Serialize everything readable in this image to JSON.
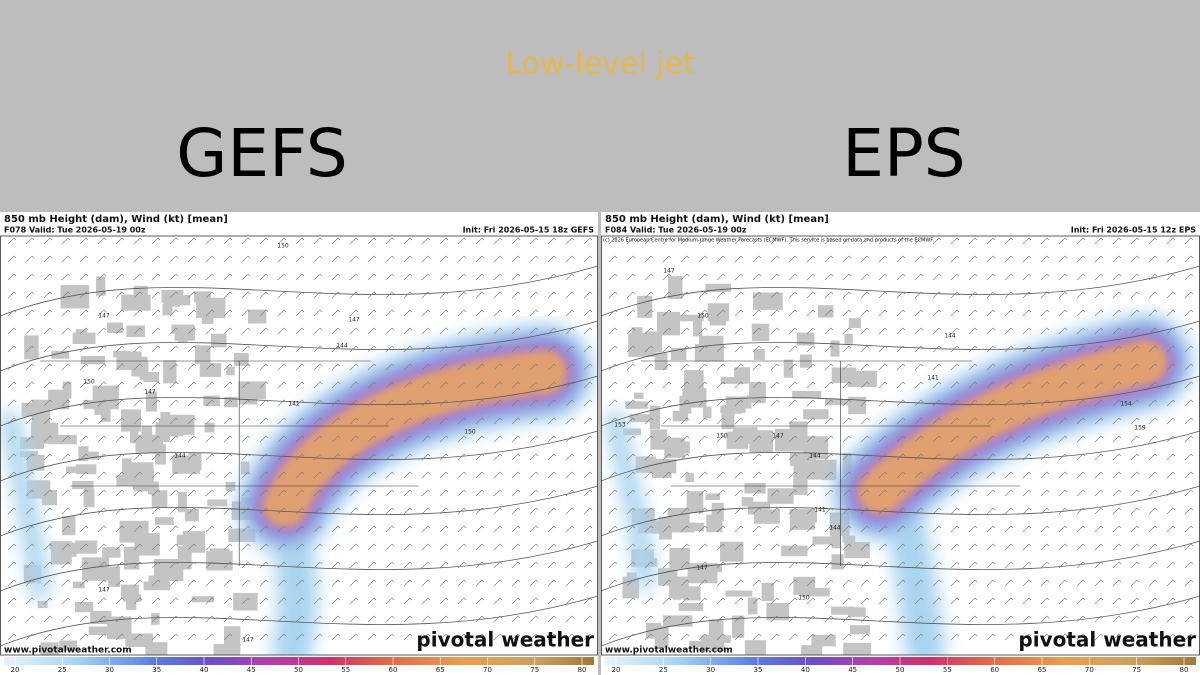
{
  "title": "Low-level jet",
  "panels": [
    {
      "label": "GEFS",
      "map_title": "850 mb Height (dam), Wind (kt) [mean]",
      "valid": "F078 Valid: Tue 2026-05-19 00z",
      "init": "Init: Fri 2026-05-15 18z GEFS",
      "website": "www.pivotalweather.com",
      "brand": "pivotal weather",
      "contour_labels": [
        150,
        147,
        147,
        144,
        150,
        147,
        141,
        144,
        150,
        147,
        147
      ],
      "colorbar_ticks": [
        20,
        25,
        30,
        35,
        40,
        45,
        50,
        55,
        60,
        65,
        70,
        75,
        80
      ]
    },
    {
      "label": "EPS",
      "map_title": "850 mb Height (dam), Wind (kt) [mean]",
      "valid": "F084 Valid: Tue 2026-05-19 00z",
      "init": "Init: Fri 2026-05-15 12z EPS",
      "copyright": "(c) 2026 European Centre for Medium-range Weather Forecasts (ECMWF). This service is based on data and products of the ECMWF.",
      "website": "www.pivotalweather.com",
      "brand": "pivotal weather",
      "contour_labels": [
        147,
        150,
        144,
        141,
        153,
        150,
        147,
        144,
        141,
        144,
        150,
        147,
        154,
        159
      ],
      "colorbar_ticks": [
        20,
        25,
        30,
        35,
        40,
        45,
        50,
        55,
        60,
        65,
        70,
        75,
        80
      ]
    }
  ]
}
